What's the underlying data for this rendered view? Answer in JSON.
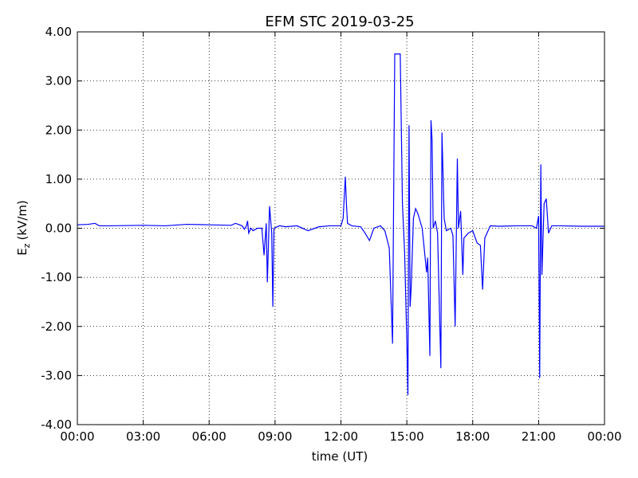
{
  "chart_data": {
    "type": "line",
    "title": "EFM STC    2019-03-25",
    "xlabel": "time (UT)",
    "ylabel": [
      "E",
      "z",
      "(kV/m)"
    ],
    "xlim": [
      0,
      24
    ],
    "xticks": [
      {
        "value": 0,
        "label": "00:00"
      },
      {
        "value": 3,
        "label": "03:00"
      },
      {
        "value": 6,
        "label": "06:00"
      },
      {
        "value": 9,
        "label": "09:00"
      },
      {
        "value": 12,
        "label": "12:00"
      },
      {
        "value": 15,
        "label": "15:00"
      },
      {
        "value": 18,
        "label": "18:00"
      },
      {
        "value": 21,
        "label": "21:00"
      },
      {
        "value": 24,
        "label": "00:00"
      }
    ],
    "ylim": [
      -4,
      4
    ],
    "yticks": [
      {
        "value": -4,
        "label": "-4.00"
      },
      {
        "value": -3,
        "label": "-3.00"
      },
      {
        "value": -2,
        "label": "-2.00"
      },
      {
        "value": -1,
        "label": "-1.00"
      },
      {
        "value": 0,
        "label": "0.00"
      },
      {
        "value": 1,
        "label": "1.00"
      },
      {
        "value": 2,
        "label": "2.00"
      },
      {
        "value": 3,
        "label": "3.00"
      },
      {
        "value": 4,
        "label": "4.00"
      }
    ],
    "grid": true,
    "series": [
      {
        "color": "#0000ff",
        "x": [
          0,
          0.5,
          0.8,
          1,
          1.5,
          3,
          4,
          5,
          6,
          7,
          7.2,
          7.5,
          7.6,
          7.7,
          7.75,
          7.8,
          7.9,
          8.0,
          8.2,
          8.4,
          8.5,
          8.6,
          8.65,
          8.75,
          8.85,
          8.9,
          8.95,
          9.2,
          9.5,
          10,
          10.5,
          11,
          11.5,
          12.0,
          12.1,
          12.2,
          12.25,
          12.3,
          12.5,
          12.9,
          13.1,
          13.3,
          13.5,
          13.8,
          14.0,
          14.2,
          14.35,
          14.45,
          14.7,
          14.8,
          14.9,
          15.0,
          15.05,
          15.1,
          15.15,
          15.2,
          15.3,
          15.4,
          15.5,
          15.7,
          15.9,
          15.95,
          16.05,
          16.1,
          16.15,
          16.2,
          16.3,
          16.4,
          16.55,
          16.6,
          16.7,
          16.8,
          17.0,
          17.1,
          17.2,
          17.3,
          17.35,
          17.45,
          17.55,
          17.6,
          17.8,
          18.0,
          18.2,
          18.35,
          18.45,
          18.55,
          18.8,
          19.2,
          20,
          20.7,
          20.9,
          21.0,
          21.05,
          21.1,
          21.15,
          21.25,
          21.35,
          21.45,
          21.6,
          22,
          23,
          24
        ],
        "values": [
          0.07,
          0.08,
          0.1,
          0.05,
          0.05,
          0.06,
          0.05,
          0.08,
          0.07,
          0.06,
          0.1,
          0.05,
          -0.02,
          0.05,
          0.15,
          -0.1,
          0.0,
          -0.05,
          0.0,
          0.0,
          -0.55,
          0.1,
          -1.1,
          0.45,
          -0.1,
          -1.6,
          0.0,
          0.05,
          0.03,
          0.05,
          -0.05,
          0.03,
          0.05,
          0.05,
          0.2,
          1.05,
          0.5,
          0.1,
          0.05,
          0.03,
          -0.1,
          -0.25,
          0.0,
          0.05,
          -0.05,
          -0.4,
          -2.35,
          3.55,
          3.55,
          0.5,
          -0.5,
          -2.3,
          -3.4,
          2.1,
          -1.6,
          -1.2,
          0.2,
          0.4,
          0.3,
          0.0,
          -0.9,
          -0.6,
          -2.6,
          2.2,
          1.8,
          0.0,
          0.15,
          -0.1,
          -2.85,
          1.95,
          0.2,
          -0.05,
          0.0,
          -0.15,
          -2.0,
          1.42,
          0.0,
          0.35,
          -0.95,
          -0.2,
          -0.1,
          -0.05,
          -0.3,
          -0.35,
          -1.25,
          -0.2,
          0.05,
          0.04,
          0.05,
          0.05,
          0.0,
          0.25,
          -3.05,
          1.3,
          -0.95,
          0.5,
          0.6,
          -0.1,
          0.05,
          0.05,
          0.04,
          0.04
        ]
      }
    ]
  }
}
